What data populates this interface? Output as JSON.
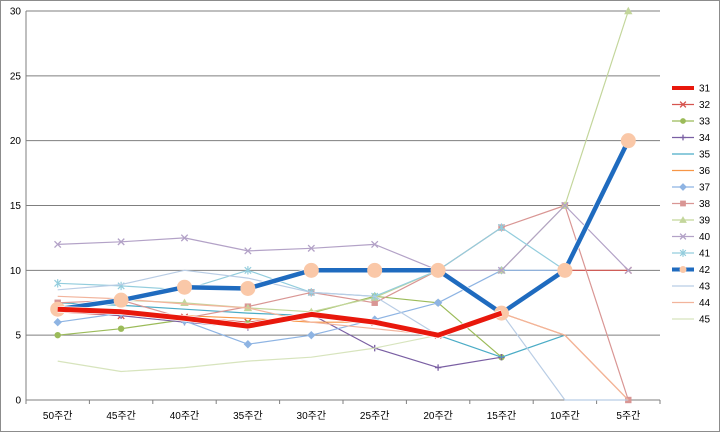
{
  "chart_data": {
    "type": "line",
    "title": "",
    "xlabel": "",
    "ylabel": "",
    "ylim": [
      0,
      30
    ],
    "yticks": [
      0,
      5,
      10,
      15,
      20,
      25,
      30
    ],
    "grid": "horizontal",
    "legend_position": "right",
    "categories": [
      "50주간",
      "45주간",
      "40주간",
      "35주간",
      "30주간",
      "25주간",
      "20주간",
      "15주간",
      "10주간",
      "5주간"
    ],
    "series": [
      {
        "name": "31",
        "color": "#e8180c",
        "width": 5,
        "marker": "none",
        "values": [
          7.0,
          6.8,
          6.3,
          5.7,
          6.6,
          6.0,
          5.0,
          6.7,
          null,
          null
        ]
      },
      {
        "name": "32",
        "color": "#d6544f",
        "width": 1.2,
        "marker": "x",
        "values": [
          6.8,
          6.5,
          6.4,
          6.0,
          6.6,
          6.0,
          5.0,
          6.7,
          10.0,
          10.0
        ]
      },
      {
        "name": "33",
        "color": "#9bbb59",
        "width": 1.2,
        "marker": "circle",
        "values": [
          5.0,
          5.5,
          6.2,
          5.9,
          6.7,
          8.0,
          7.5,
          3.3,
          null,
          null
        ]
      },
      {
        "name": "34",
        "color": "#7a5fa3",
        "width": 1.2,
        "marker": "plus",
        "values": [
          6.9,
          6.5,
          6.0,
          5.6,
          6.6,
          4.0,
          2.5,
          3.3,
          null,
          null
        ]
      },
      {
        "name": "35",
        "color": "#4bacc6",
        "width": 1.2,
        "marker": "none",
        "values": [
          7.5,
          7.3,
          7.0,
          6.7,
          6.5,
          6.2,
          5.0,
          3.3,
          5.0,
          null
        ]
      },
      {
        "name": "36",
        "color": "#f79646",
        "width": 1.2,
        "marker": "none",
        "values": [
          7.0,
          6.8,
          6.5,
          6.3,
          6.0,
          6.0,
          5.0,
          6.7,
          5.0,
          0.0
        ]
      },
      {
        "name": "37",
        "color": "#8eb4e3",
        "width": 1.2,
        "marker": "diamond",
        "values": [
          6.0,
          6.7,
          6.1,
          4.3,
          5.0,
          6.2,
          7.5,
          10.0,
          10.0,
          null
        ]
      },
      {
        "name": "38",
        "color": "#d99694",
        "width": 1.2,
        "marker": "square",
        "values": [
          7.5,
          7.7,
          6.3,
          7.2,
          8.3,
          7.5,
          10.0,
          13.3,
          15.0,
          0.0
        ]
      },
      {
        "name": "39",
        "color": "#c3d69b",
        "width": 1.2,
        "marker": "triangle",
        "values": [
          7.2,
          7.7,
          7.5,
          7.1,
          6.8,
          7.9,
          10.0,
          10.0,
          15.0,
          30.0
        ]
      },
      {
        "name": "40",
        "color": "#b3a2c7",
        "width": 1.2,
        "marker": "x",
        "values": [
          12.0,
          12.2,
          12.5,
          11.5,
          11.7,
          12.0,
          10.0,
          10.0,
          15.0,
          10.0
        ]
      },
      {
        "name": "41",
        "color": "#93cddd",
        "width": 1.2,
        "marker": "star",
        "values": [
          9.0,
          8.8,
          8.5,
          10.0,
          8.3,
          8.0,
          10.0,
          13.3,
          10.0,
          null
        ]
      },
      {
        "name": "42",
        "color": "#1f6bbf",
        "width": 4.5,
        "marker": "bigcircle",
        "values": [
          7.0,
          7.7,
          8.7,
          8.6,
          10.0,
          10.0,
          10.0,
          6.7,
          10.0,
          20.0
        ]
      },
      {
        "name": "43",
        "color": "#b9cde5",
        "width": 1.2,
        "marker": "none",
        "values": [
          8.5,
          8.9,
          10.0,
          9.4,
          8.3,
          8.0,
          5.0,
          6.7,
          0.0,
          0.0
        ]
      },
      {
        "name": "44",
        "color": "#f2b49c",
        "width": 1.2,
        "marker": "none",
        "values": [
          8.0,
          7.8,
          7.4,
          7.1,
          6.0,
          5.5,
          5.0,
          6.7,
          5.0,
          0.0
        ]
      },
      {
        "name": "45",
        "color": "#d7e4bd",
        "width": 1.2,
        "marker": "none",
        "values": [
          3.0,
          2.2,
          2.5,
          3.0,
          3.3,
          4.0,
          5.0,
          6.7,
          10.0,
          null
        ]
      }
    ]
  }
}
